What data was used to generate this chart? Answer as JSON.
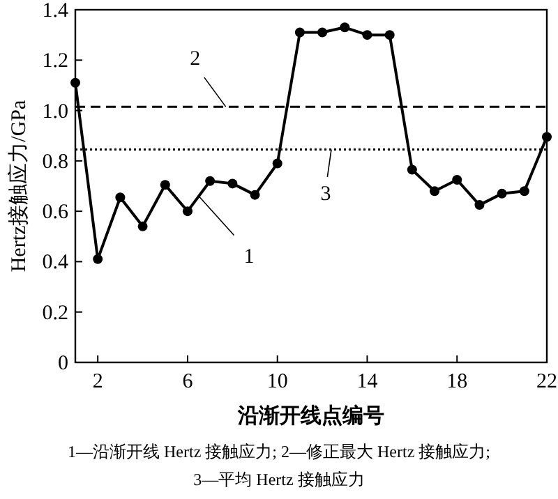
{
  "chart_data": {
    "type": "line",
    "xlabel": "沿渐开线点编号",
    "ylabel": "Hertz接触应力/GPa",
    "x": [
      1,
      2,
      3,
      4,
      5,
      6,
      7,
      8,
      9,
      10,
      11,
      12,
      13,
      14,
      15,
      16,
      17,
      18,
      19,
      20,
      21,
      22
    ],
    "series": [
      {
        "color": "#000000",
        "values": [
          1.11,
          0.41,
          0.655,
          0.54,
          0.705,
          0.6,
          0.72,
          0.71,
          0.665,
          0.79,
          1.31,
          1.31,
          1.33,
          1.3,
          1.3,
          0.765,
          0.68,
          0.725,
          0.625,
          0.67,
          0.68,
          0.895
        ]
      }
    ],
    "xlim": [
      1,
      22
    ],
    "xticks": [
      2,
      6,
      10,
      14,
      18,
      22
    ],
    "ylim": [
      0,
      1.4
    ],
    "yticks": [
      0,
      0.2,
      0.4,
      0.6,
      0.8,
      {
        "value": 1,
        "label": "1.0"
      },
      1.2,
      1.4
    ],
    "ref_lines": [
      {
        "axis": "y",
        "value": 1.015,
        "color": "#000000",
        "line_style": "dashed"
      },
      {
        "axis": "y",
        "value": 0.845,
        "color": "#000000",
        "line_style": "dotted"
      }
    ],
    "annotations": [
      {
        "text": "1",
        "x": 6.5,
        "y": 0.66
      },
      {
        "text": "2",
        "x": 7.7,
        "y": 1.015
      },
      {
        "text": "3",
        "x": 12.4,
        "y": 0.845
      },
      "1—沿渐开线 Hertz 接触应力; 2—修正最大 Hertz 接触应力;",
      "3—平均 Hertz 接触应力"
    ],
    "marker": "circle",
    "line_style": "solid",
    "grid": false
  }
}
